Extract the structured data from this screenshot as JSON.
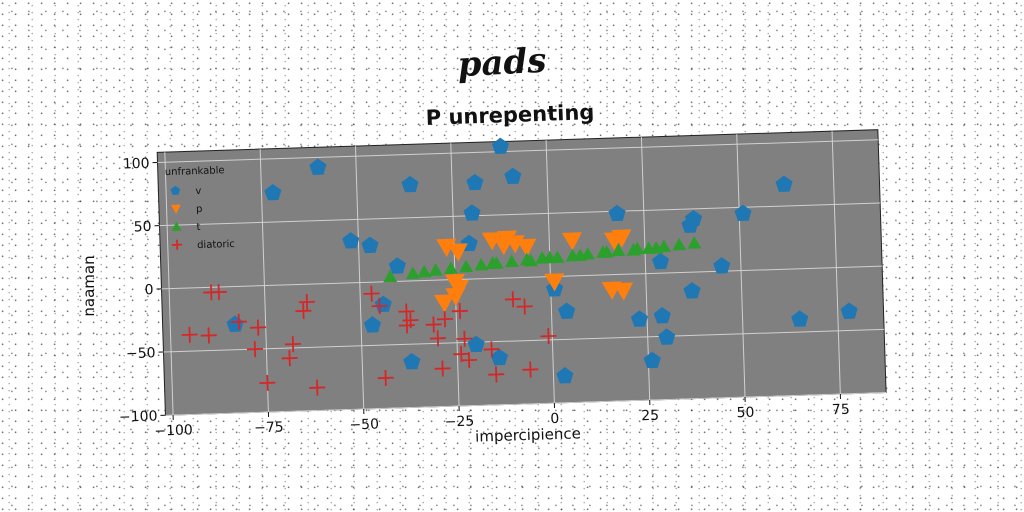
{
  "chart_data": {
    "type": "scatter",
    "overtitle": "pads",
    "title": "P unrepenting",
    "xlabel": "impercipience",
    "ylabel": "naaman",
    "xlim": [
      -102,
      87
    ],
    "ylim": [
      -100,
      108
    ],
    "x_ticks": [
      -100,
      -75,
      -50,
      -25,
      0,
      25,
      50,
      75
    ],
    "y_ticks": [
      -100,
      -50,
      0,
      50,
      100
    ],
    "x_tick_labels": [
      "−100",
      "−75",
      "−50",
      "−25",
      "0",
      "25",
      "50",
      "75"
    ],
    "y_tick_labels": [
      "−100",
      "−50",
      "0",
      "50",
      "100"
    ],
    "grid": true,
    "rotation_deg": -2,
    "plot_background": "#808080",
    "legend": {
      "title": "unfrankable",
      "placement": "top-left",
      "entries": [
        "v",
        "p",
        "t",
        "diatoric"
      ]
    },
    "series": [
      {
        "name": "v",
        "marker": "pentagon",
        "color": "#1f77b4",
        "points": [
          [
            -72,
            73
          ],
          [
            -60,
            92
          ],
          [
            -36,
            76
          ],
          [
            -12,
            104
          ],
          [
            -19,
            76
          ],
          [
            -9,
            80
          ],
          [
            -20,
            52
          ],
          [
            -52,
            33
          ],
          [
            -47,
            29
          ],
          [
            -40,
            12
          ],
          [
            -21,
            28
          ],
          [
            18,
            48
          ],
          [
            38,
            42
          ],
          [
            37,
            37
          ],
          [
            51,
            45
          ],
          [
            62,
            67
          ],
          [
            45,
            4
          ],
          [
            37,
            -15
          ],
          [
            29,
            9
          ],
          [
            78,
            -35
          ],
          [
            65,
            -40
          ],
          [
            1,
            -10
          ],
          [
            4,
            -28
          ],
          [
            23,
            -36
          ],
          [
            29,
            -34
          ],
          [
            30,
            -51
          ],
          [
            26,
            -69
          ],
          [
            -47,
            -34
          ],
          [
            -44,
            -18
          ],
          [
            -83,
            -30
          ],
          [
            -37,
            -64
          ],
          [
            -20,
            -52
          ],
          [
            -14,
            -63
          ],
          [
            3,
            -79
          ]
        ]
      },
      {
        "name": "p",
        "marker": "triangle-down",
        "color": "#ff7f0e",
        "points": [
          [
            -27,
            26
          ],
          [
            -24,
            22
          ],
          [
            -15,
            30
          ],
          [
            -12,
            26
          ],
          [
            -11,
            31
          ],
          [
            -9,
            27
          ],
          [
            -6,
            24
          ],
          [
            6,
            28
          ],
          [
            19,
            29
          ],
          [
            17,
            27
          ],
          [
            -25,
            -2
          ],
          [
            -24,
            -7
          ],
          [
            -25,
            -13
          ],
          [
            -28,
            -18
          ],
          [
            1,
            -4
          ],
          [
            16,
            -12
          ],
          [
            19,
            -13
          ]
        ]
      },
      {
        "name": "t",
        "marker": "triangle-up",
        "color": "#2ca02c",
        "points": [
          [
            -42,
            4
          ],
          [
            -36,
            6
          ],
          [
            -30,
            8
          ],
          [
            -26,
            9
          ],
          [
            -22,
            10
          ],
          [
            -18,
            11
          ],
          [
            -14,
            12
          ],
          [
            -10,
            13
          ],
          [
            -6,
            14
          ],
          [
            -2,
            15
          ],
          [
            2,
            15
          ],
          [
            6,
            16
          ],
          [
            10,
            17
          ],
          [
            14,
            18
          ],
          [
            18,
            19
          ],
          [
            22,
            19
          ],
          [
            26,
            20
          ],
          [
            30,
            21
          ],
          [
            34,
            22
          ],
          [
            38,
            23
          ],
          [
            -33,
            7
          ],
          [
            -15,
            12
          ],
          [
            0,
            15
          ],
          [
            15,
            18
          ],
          [
            28,
            20
          ],
          [
            8,
            16
          ],
          [
            -5,
            13
          ],
          [
            23,
            20
          ]
        ]
      },
      {
        "name": "diatoric",
        "marker": "plus",
        "color": "#d62728",
        "points": [
          [
            -89,
            -4
          ],
          [
            -87,
            -4
          ],
          [
            -82,
            -28
          ],
          [
            -95,
            -37
          ],
          [
            -90,
            -38
          ],
          [
            -77,
            -33
          ],
          [
            -78,
            -50
          ],
          [
            -75,
            -77
          ],
          [
            -64,
            -14
          ],
          [
            -65,
            -21
          ],
          [
            -68,
            -47
          ],
          [
            -69,
            -58
          ],
          [
            -62,
            -82
          ],
          [
            -47,
            -9
          ],
          [
            -45,
            -19
          ],
          [
            -38,
            -24
          ],
          [
            -37,
            -31
          ],
          [
            -38,
            -35
          ],
          [
            -30,
            -46
          ],
          [
            -29,
            -70
          ],
          [
            -31,
            -35
          ],
          [
            -28,
            -31
          ],
          [
            -24,
            -25
          ],
          [
            -23,
            -47
          ],
          [
            -24,
            -59
          ],
          [
            -22,
            -64
          ],
          [
            -16,
            -56
          ],
          [
            -10,
            -17
          ],
          [
            -7,
            -23
          ],
          [
            -15,
            -76
          ],
          [
            -6,
            -73
          ],
          [
            -1,
            -47
          ],
          [
            -44,
            -76
          ]
        ]
      }
    ]
  }
}
